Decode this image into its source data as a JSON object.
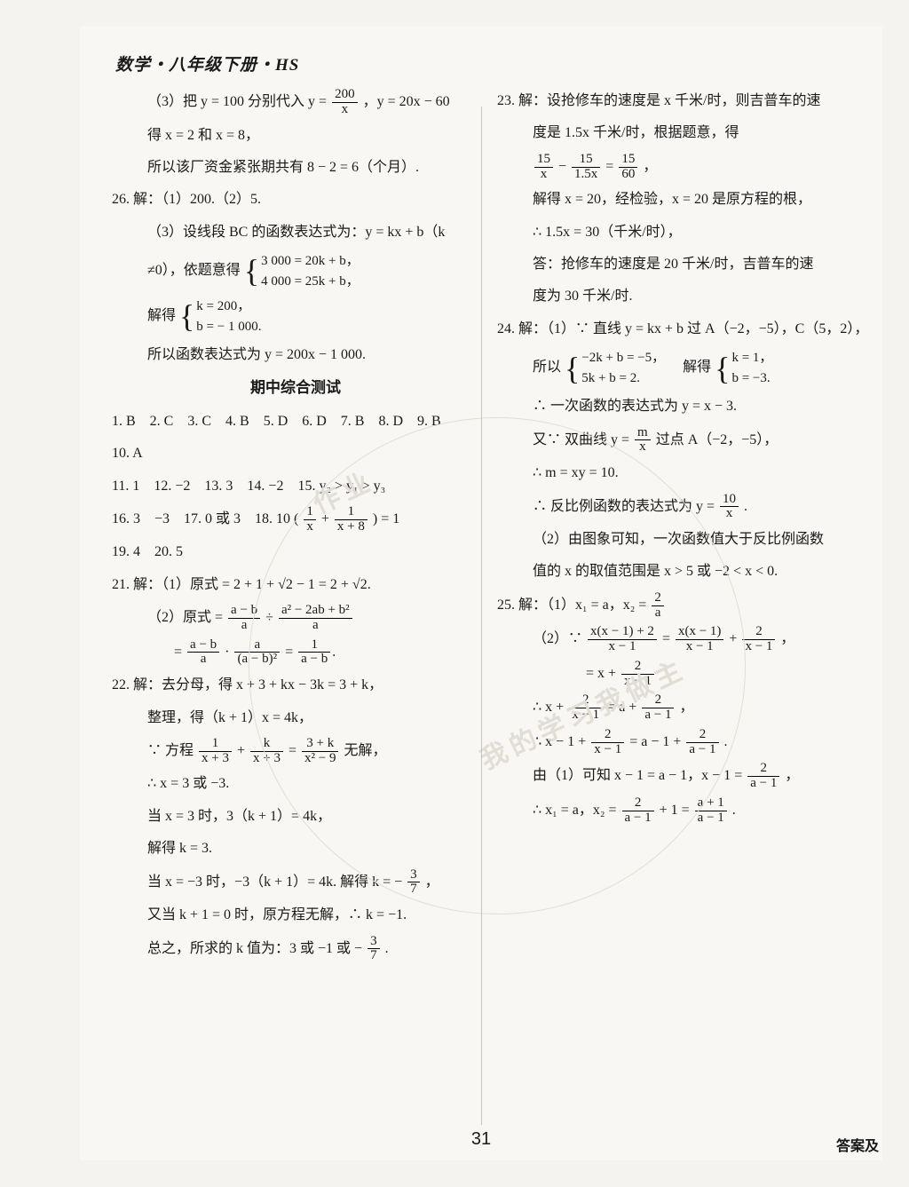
{
  "header": "数学・八年级下册・HS",
  "page_number": "31",
  "bottom_right": "答案及",
  "watermarks": [
    "作业",
    "我的学习我做主"
  ],
  "left": {
    "q25_3_a": "（3）把 y = 100 分别代入 y =",
    "q25_3_frac1": {
      "n": "200",
      "d": "x"
    },
    "q25_3_b": "，y = 20x − 60",
    "q25_3_c": "得 x = 2 和 x = 8，",
    "q25_3_d": "所以该厂资金紧张期共有 8 − 2 = 6（个月）.",
    "q26_a": "26. 解：（1）200.（2）5.",
    "q26_b": "（3）设线段 BC 的函数表达式为：y = kx + b（k",
    "q26_c_pre": "≠0），依题意得",
    "q26_sys1": [
      "3 000 = 20k + b，",
      "4 000 = 25k + b，"
    ],
    "q26_d_pre": "解得",
    "q26_sys2": [
      "k = 200，",
      "b = − 1 000."
    ],
    "q26_e": "所以函数表达式为 y = 200x − 1 000.",
    "section": "期中综合测试",
    "ans1": "1. B　2. C　3. C　4. B　5. D　6. D　7. B　8. D　9. B",
    "ans2": "10. A",
    "ans3": "11. 1　12. −2　13. 3　14. −2　15. y₂ > y₁ > y₃",
    "ans4_a": "16. 3　−3　17. 0 或 3　18. 10",
    "ans4_paren_a": {
      "n": "1",
      "d": "x"
    },
    "ans4_plus": " + ",
    "ans4_paren_b": {
      "n": "1",
      "d": "x + 8"
    },
    "ans4_b": " = 1",
    "ans5": "19. 4　20. 5",
    "q21_1": "21. 解：（1）原式 = 2 + 1 + √2 − 1 = 2 + √2.",
    "q21_2a": "（2）原式 =",
    "q21_2_f1": {
      "n": "a − b",
      "d": "a"
    },
    "q21_2_div": " ÷ ",
    "q21_2_f2": {
      "n": "a² − 2ab + b²",
      "d": "a"
    },
    "q21_2b": "=",
    "q21_2_f3": {
      "n": "a − b",
      "d": "a"
    },
    "q21_2_dot": " · ",
    "q21_2_f4": {
      "n": "a",
      "d": "(a − b)²"
    },
    "q21_2_eq": " = ",
    "q21_2_f5": {
      "n": "1",
      "d": "a − b"
    },
    "q22_a": "22. 解：去分母，得 x + 3 + kx − 3k = 3 + k，",
    "q22_b": "整理，得（k + 1）x = 4k，",
    "q22_c_pre": "∵ 方程",
    "q22_c_f1": {
      "n": "1",
      "d": "x + 3"
    },
    "q22_c_plus": " + ",
    "q22_c_f2": {
      "n": "k",
      "d": "x + 3"
    },
    "q22_c_eq": " = ",
    "q22_c_f3": {
      "n": "3 + k",
      "d": "x² − 9"
    },
    "q22_c_post": "无解，",
    "q22_d": "∴ x = 3 或 −3.",
    "q22_e": "当 x = 3 时，3（k + 1）= 4k，",
    "q22_f": "解得 k = 3.",
    "q22_g_a": "当 x = −3 时，−3（k + 1）= 4k. 解得 k = −",
    "q22_g_f": {
      "n": "3",
      "d": "7"
    },
    "q22_g_b": "，",
    "q22_h": "又当 k + 1 = 0 时，原方程无解，∴ k = −1.",
    "q22_i_a": "总之，所求的 k 值为：3 或 −1 或 −",
    "q22_i_f": {
      "n": "3",
      "d": "7"
    },
    "q22_i_b": "."
  },
  "right": {
    "q23_a": "23. 解：设抢修车的速度是 x 千米/时，则吉普车的速",
    "q23_b": "度是 1.5x 千米/时，根据题意，得",
    "q23_c_f1": {
      "n": "15",
      "d": "x"
    },
    "q23_c_minus": " − ",
    "q23_c_f2": {
      "n": "15",
      "d": "1.5x"
    },
    "q23_c_eq": " = ",
    "q23_c_f3": {
      "n": "15",
      "d": "60"
    },
    "q23_c_post": "，",
    "q23_d": "解得 x = 20，经检验，x = 20 是原方程的根，",
    "q23_e": "∴ 1.5x = 30（千米/时），",
    "q23_f": "答：抢修车的速度是 20 千米/时，吉普车的速",
    "q23_g": "度为 30 千米/时.",
    "q24_a": "24. 解：（1）∵ 直线 y = kx + b 过 A（−2，−5），C（5，2），",
    "q24_b_pre": "所以",
    "q24_sys1": [
      "−2k + b = −5，",
      "5k + b = 2."
    ],
    "q24_b_mid": "　解得",
    "q24_sys2": [
      "k = 1，",
      "b = −3."
    ],
    "q24_c": "∴ 一次函数的表达式为 y = x − 3.",
    "q24_d_a": "又∵ 双曲线 y =",
    "q24_d_f": {
      "n": "m",
      "d": "x"
    },
    "q24_d_b": "过点 A（−2，−5），",
    "q24_e": "∴ m = xy = 10.",
    "q24_f_a": "∴ 反比例函数的表达式为 y =",
    "q24_f_f": {
      "n": "10",
      "d": "x"
    },
    "q24_f_b": ".",
    "q24_g": "（2）由图象可知，一次函数值大于反比例函数",
    "q24_h": "值的 x 的取值范围是 x > 5 或 −2 < x < 0.",
    "q25_a_pre": "25. 解：（1）x₁ = a，x₂ =",
    "q25_a_f": {
      "n": "2",
      "d": "a"
    },
    "q25_b_pre": "（2）∵",
    "q25_b_f1": {
      "n": "x(x − 1) + 2",
      "d": "x − 1"
    },
    "q25_b_eq": " = ",
    "q25_b_f2": {
      "n": "x(x − 1)",
      "d": "x − 1"
    },
    "q25_b_plus": " + ",
    "q25_b_f3": {
      "n": "2",
      "d": "x − 1"
    },
    "q25_b_post": "，",
    "q25_c_pre": "= x + ",
    "q25_c_f": {
      "n": "2",
      "d": "x − 1"
    },
    "q25_d_pre": "∴ x + ",
    "q25_d_f1": {
      "n": "2",
      "d": "x − 1"
    },
    "q25_d_eq": " = a + ",
    "q25_d_f2": {
      "n": "2",
      "d": "a − 1"
    },
    "q25_d_post": "，",
    "q25_e_pre": "∴ x − 1 + ",
    "q25_e_f1": {
      "n": "2",
      "d": "x − 1"
    },
    "q25_e_eq": " = a − 1 + ",
    "q25_e_f2": {
      "n": "2",
      "d": "a − 1"
    },
    "q25_e_post": ".",
    "q25_f_pre": "由（1）可知 x − 1 = a − 1，x − 1 = ",
    "q25_f_f": {
      "n": "2",
      "d": "a − 1"
    },
    "q25_f_post": "，",
    "q25_g_pre": "∴ x₁ = a，x₂ = ",
    "q25_g_f1": {
      "n": "2",
      "d": "a − 1"
    },
    "q25_g_mid": " + 1 = ",
    "q25_g_f2": {
      "n": "a + 1",
      "d": "a − 1"
    },
    "q25_g_post": "."
  }
}
